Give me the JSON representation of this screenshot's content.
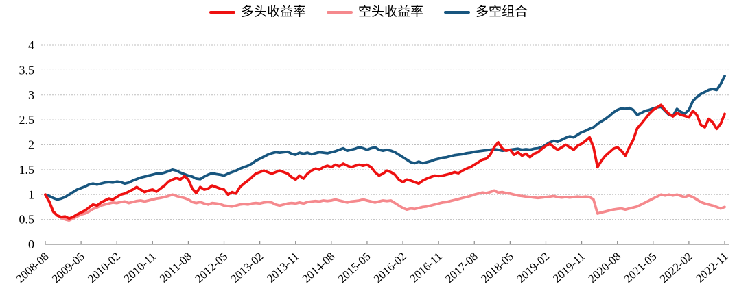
{
  "legend": {
    "items": [
      {
        "label": "多头收益率"
      },
      {
        "label": "空头收益率"
      },
      {
        "label": "多空组合"
      }
    ]
  },
  "chart_data": {
    "type": "line",
    "title": "",
    "x_start": "2008-08",
    "x_end": "2022-11",
    "x_frequency": "monthly",
    "x_tick_interval_months": 9,
    "x_tick_labels": [
      "2008-08",
      "2009-05",
      "2010-02",
      "2010-11",
      "2011-08",
      "2012-05",
      "2013-02",
      "2013-11",
      "2014-08",
      "2015-05",
      "2016-02",
      "2016-11",
      "2017-08",
      "2018-05",
      "2019-02",
      "2019-11",
      "2020-08",
      "2021-05",
      "2022-02",
      "2022-11"
    ],
    "ylim": [
      0,
      4
    ],
    "y_ticks": [
      0,
      0.5,
      1,
      1.5,
      2,
      2.5,
      3,
      3.5,
      4
    ],
    "grid": "dashed-horizontal",
    "legend_position": "top",
    "colors": {
      "grid": "#bfbfbf",
      "axis": "#8c8c8c",
      "text": "#000000"
    },
    "series": [
      {
        "name": "多空组合",
        "id": "long-short-combo",
        "color": "#18567f",
        "values": [
          1.0,
          0.97,
          0.93,
          0.9,
          0.92,
          0.95,
          1.0,
          1.05,
          1.1,
          1.13,
          1.16,
          1.2,
          1.22,
          1.2,
          1.22,
          1.24,
          1.25,
          1.24,
          1.26,
          1.25,
          1.22,
          1.24,
          1.28,
          1.31,
          1.34,
          1.36,
          1.38,
          1.4,
          1.42,
          1.42,
          1.44,
          1.47,
          1.5,
          1.48,
          1.44,
          1.41,
          1.38,
          1.36,
          1.32,
          1.31,
          1.36,
          1.4,
          1.43,
          1.41,
          1.4,
          1.38,
          1.42,
          1.45,
          1.48,
          1.52,
          1.55,
          1.58,
          1.62,
          1.68,
          1.72,
          1.76,
          1.8,
          1.83,
          1.85,
          1.84,
          1.85,
          1.86,
          1.82,
          1.8,
          1.84,
          1.82,
          1.84,
          1.81,
          1.83,
          1.85,
          1.84,
          1.83,
          1.85,
          1.87,
          1.9,
          1.93,
          1.88,
          1.9,
          1.92,
          1.95,
          1.93,
          1.9,
          1.93,
          1.95,
          1.9,
          1.88,
          1.9,
          1.88,
          1.85,
          1.8,
          1.75,
          1.7,
          1.65,
          1.63,
          1.66,
          1.63,
          1.65,
          1.67,
          1.7,
          1.72,
          1.74,
          1.75,
          1.77,
          1.79,
          1.8,
          1.81,
          1.83,
          1.84,
          1.86,
          1.87,
          1.88,
          1.89,
          1.9,
          1.91,
          1.9,
          1.88,
          1.89,
          1.9,
          1.91,
          1.92,
          1.9,
          1.91,
          1.9,
          1.92,
          1.93,
          1.95,
          2.0,
          2.05,
          2.08,
          2.06,
          2.1,
          2.14,
          2.17,
          2.15,
          2.2,
          2.25,
          2.28,
          2.32,
          2.35,
          2.42,
          2.47,
          2.52,
          2.58,
          2.65,
          2.7,
          2.73,
          2.72,
          2.74,
          2.7,
          2.6,
          2.64,
          2.68,
          2.7,
          2.73,
          2.75,
          2.76,
          2.68,
          2.6,
          2.58,
          2.72,
          2.66,
          2.63,
          2.7,
          2.88,
          2.96,
          3.02,
          3.06,
          3.1,
          3.12,
          3.1,
          3.22,
          3.38
        ]
      },
      {
        "name": "空头收益率",
        "id": "short-return",
        "color": "#f5898d",
        "values": [
          1.0,
          0.85,
          0.65,
          0.58,
          0.53,
          0.5,
          0.48,
          0.52,
          0.56,
          0.6,
          0.62,
          0.66,
          0.71,
          0.74,
          0.78,
          0.8,
          0.82,
          0.84,
          0.83,
          0.85,
          0.86,
          0.83,
          0.85,
          0.87,
          0.88,
          0.86,
          0.88,
          0.9,
          0.92,
          0.93,
          0.95,
          0.97,
          1.0,
          0.97,
          0.95,
          0.93,
          0.9,
          0.85,
          0.83,
          0.85,
          0.82,
          0.8,
          0.83,
          0.82,
          0.81,
          0.78,
          0.77,
          0.76,
          0.78,
          0.8,
          0.81,
          0.8,
          0.82,
          0.83,
          0.82,
          0.84,
          0.85,
          0.84,
          0.8,
          0.78,
          0.8,
          0.82,
          0.83,
          0.82,
          0.84,
          0.82,
          0.85,
          0.86,
          0.87,
          0.86,
          0.88,
          0.87,
          0.88,
          0.9,
          0.88,
          0.86,
          0.84,
          0.86,
          0.87,
          0.88,
          0.9,
          0.88,
          0.86,
          0.84,
          0.86,
          0.88,
          0.87,
          0.88,
          0.83,
          0.78,
          0.73,
          0.7,
          0.72,
          0.71,
          0.73,
          0.75,
          0.76,
          0.78,
          0.8,
          0.82,
          0.84,
          0.85,
          0.87,
          0.89,
          0.91,
          0.93,
          0.95,
          0.97,
          1.0,
          1.02,
          1.04,
          1.03,
          1.05,
          1.08,
          1.04,
          1.05,
          1.03,
          1.02,
          1.0,
          0.98,
          0.97,
          0.96,
          0.95,
          0.94,
          0.93,
          0.94,
          0.95,
          0.96,
          0.97,
          0.95,
          0.94,
          0.95,
          0.94,
          0.95,
          0.96,
          0.95,
          0.96,
          0.95,
          0.9,
          0.62,
          0.64,
          0.66,
          0.68,
          0.7,
          0.71,
          0.72,
          0.7,
          0.72,
          0.74,
          0.76,
          0.8,
          0.84,
          0.88,
          0.92,
          0.96,
          1.0,
          0.98,
          1.0,
          0.98,
          1.0,
          0.97,
          0.95,
          0.98,
          0.95,
          0.9,
          0.85,
          0.82,
          0.8,
          0.78,
          0.75,
          0.72,
          0.75
        ]
      },
      {
        "name": "多头收益率",
        "id": "long-return",
        "color": "#ee1111",
        "values": [
          1.0,
          0.86,
          0.66,
          0.58,
          0.55,
          0.56,
          0.52,
          0.55,
          0.6,
          0.64,
          0.68,
          0.74,
          0.8,
          0.78,
          0.84,
          0.88,
          0.92,
          0.9,
          0.95,
          1.0,
          1.02,
          1.06,
          1.1,
          1.15,
          1.1,
          1.05,
          1.08,
          1.1,
          1.06,
          1.12,
          1.18,
          1.26,
          1.3,
          1.33,
          1.3,
          1.37,
          1.3,
          1.12,
          1.03,
          1.15,
          1.1,
          1.12,
          1.18,
          1.15,
          1.12,
          1.1,
          1.0,
          1.05,
          1.02,
          1.15,
          1.22,
          1.28,
          1.35,
          1.42,
          1.45,
          1.48,
          1.45,
          1.42,
          1.45,
          1.48,
          1.45,
          1.42,
          1.35,
          1.3,
          1.38,
          1.32,
          1.42,
          1.48,
          1.52,
          1.5,
          1.55,
          1.58,
          1.55,
          1.6,
          1.57,
          1.62,
          1.58,
          1.55,
          1.58,
          1.6,
          1.58,
          1.6,
          1.55,
          1.45,
          1.38,
          1.42,
          1.48,
          1.45,
          1.4,
          1.3,
          1.25,
          1.3,
          1.28,
          1.25,
          1.22,
          1.28,
          1.32,
          1.35,
          1.38,
          1.37,
          1.38,
          1.4,
          1.42,
          1.45,
          1.43,
          1.48,
          1.52,
          1.55,
          1.6,
          1.65,
          1.7,
          1.72,
          1.8,
          1.95,
          2.05,
          1.93,
          1.88,
          1.9,
          1.8,
          1.85,
          1.78,
          1.82,
          1.75,
          1.82,
          1.85,
          1.92,
          1.98,
          2.02,
          1.95,
          1.9,
          1.95,
          2.0,
          1.95,
          1.9,
          1.98,
          2.02,
          2.08,
          2.15,
          1.95,
          1.55,
          1.68,
          1.78,
          1.85,
          1.92,
          1.95,
          1.88,
          1.78,
          1.95,
          2.1,
          2.33,
          2.42,
          2.52,
          2.62,
          2.7,
          2.75,
          2.8,
          2.7,
          2.62,
          2.57,
          2.64,
          2.6,
          2.58,
          2.55,
          2.68,
          2.6,
          2.4,
          2.35,
          2.52,
          2.45,
          2.32,
          2.42,
          2.62
        ]
      }
    ],
    "legend_order": [
      "多头收益率",
      "空头收益率",
      "多空组合"
    ]
  }
}
